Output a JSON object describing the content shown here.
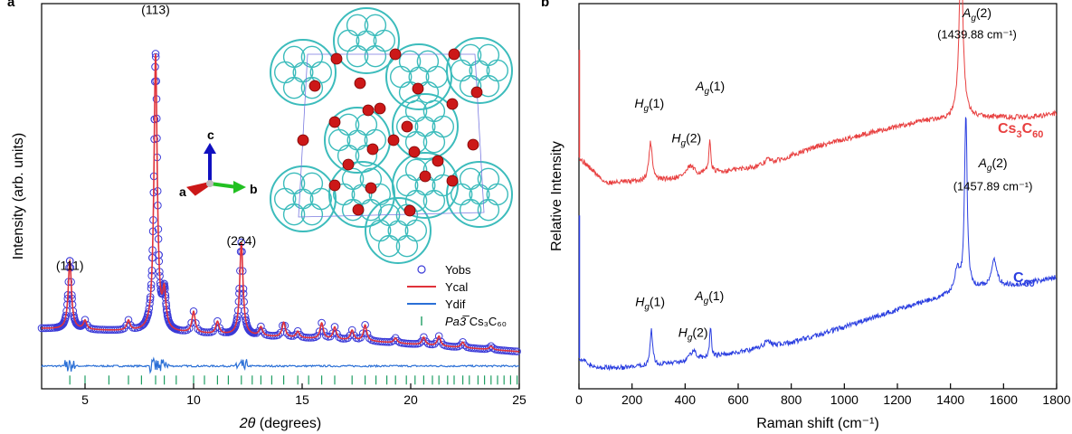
{
  "colors": {
    "yobs": "#3b3bd8",
    "ycal": "#e0323a",
    "ydif": "#2a6fd6",
    "ticks": "#1f9e63",
    "raman_cs3c60": "#e84040",
    "raman_c60": "#2a3ee0",
    "cage": "#3cbcbc",
    "cs_atom": "#cc1818",
    "axis_a": "#cc1818",
    "axis_b": "#22c022",
    "axis_c": "#1010c0"
  },
  "chart_data": [
    {
      "type": "scatter",
      "panel_label": "a",
      "xlabel_symbol": "2θ",
      "xlabel_unit": " (degrees)",
      "ylabel": "Intensity (arb. units)",
      "xlim": [
        3,
        25
      ],
      "ylim": [
        -10,
        100
      ],
      "xticks": [
        5,
        10,
        15,
        20,
        25
      ],
      "background": [
        [
          3,
          7.2
        ],
        [
          10,
          5.8
        ],
        [
          18,
          3.6
        ],
        [
          25,
          0.6
        ]
      ],
      "peaks": [
        {
          "pos": 4.3,
          "height": 19.5
        },
        {
          "pos": 5.0,
          "height": 2.5
        },
        {
          "pos": 7.0,
          "height": 2.8
        },
        {
          "pos": 8.25,
          "height": 79
        },
        {
          "pos": 8.65,
          "height": 10
        },
        {
          "pos": 10.0,
          "height": 6
        },
        {
          "pos": 11.1,
          "height": 3.5
        },
        {
          "pos": 12.2,
          "height": 26.5
        },
        {
          "pos": 13.1,
          "height": 2.5
        },
        {
          "pos": 14.15,
          "height": 4.2
        },
        {
          "pos": 14.8,
          "height": 1.8
        },
        {
          "pos": 15.9,
          "height": 4.5
        },
        {
          "pos": 16.5,
          "height": 3.5
        },
        {
          "pos": 17.3,
          "height": 2.8
        },
        {
          "pos": 17.9,
          "height": 4.5
        },
        {
          "pos": 19.3,
          "height": 1.4
        },
        {
          "pos": 20.6,
          "height": 2.2
        },
        {
          "pos": 21.3,
          "height": 2.8
        },
        {
          "pos": 22.4,
          "height": 1.6
        },
        {
          "pos": 23.7,
          "height": 1.0
        }
      ],
      "difference_baseline": -3.5,
      "tick_row": -7.5,
      "reflection_markers": [
        4.3,
        5.0,
        6.1,
        7.0,
        7.6,
        8.25,
        8.65,
        9.2,
        10.0,
        10.5,
        11.1,
        11.6,
        12.2,
        12.7,
        13.1,
        13.6,
        14.15,
        14.8,
        15.3,
        15.9,
        16.5,
        17.3,
        17.9,
        18.4,
        18.9,
        19.3,
        19.8,
        20.2,
        20.6,
        21.0,
        21.3,
        21.7,
        22.0,
        22.4,
        22.7,
        23.1,
        23.4,
        23.7,
        24.0,
        24.3,
        24.6,
        24.9
      ],
      "peak_labels": [
        {
          "text": "(111)",
          "x": 4.3,
          "y": 24
        },
        {
          "text": "(113)",
          "x": 8.25,
          "y": 97
        },
        {
          "text": "(224)",
          "x": 12.2,
          "y": 31
        }
      ],
      "legend": {
        "position": "bottom-right",
        "items": [
          {
            "label": "Yobs",
            "style": "circle"
          },
          {
            "label": "Ycal",
            "style": "line-ycal"
          },
          {
            "label": "Ydif",
            "style": "line-ydif"
          },
          {
            "label_italic": "Pa3̅",
            "label_rest": " Cs₃C₆₀",
            "style": "tick"
          }
        ]
      },
      "inset": {
        "description": "crystal-structure",
        "axis_labels": {
          "a": "a",
          "b": "b",
          "c": "c"
        }
      }
    },
    {
      "type": "line",
      "panel_label": "b",
      "xlabel": "Raman shift (cm⁻¹)",
      "ylabel": "Relative Intensity",
      "xlim": [
        0,
        1800
      ],
      "ylim": [
        0,
        100
      ],
      "xticks": [
        0,
        200,
        400,
        600,
        800,
        1000,
        1200,
        1400,
        1600,
        1800
      ],
      "series": [
        {
          "name": "Cs3C60",
          "name_html_base": "Cs",
          "name_sub1": "3",
          "name_mid": "C",
          "name_sub2": "60",
          "baseline": [
            [
              0,
              60
            ],
            [
              100,
              53.5
            ],
            [
              300,
              54
            ],
            [
              500,
              56
            ],
            [
              700,
              58
            ],
            [
              900,
              63
            ],
            [
              1100,
              66.5
            ],
            [
              1300,
              69.5
            ],
            [
              1400,
              70
            ],
            [
              1500,
              70.5
            ],
            [
              1700,
              70.5
            ],
            [
              1800,
              71.5
            ]
          ],
          "peaks": [
            {
              "pos": 270,
              "height": 10,
              "width": 8
            },
            {
              "pos": 420,
              "height": 2.5,
              "width": 18
            },
            {
              "pos": 493,
              "height": 8,
              "width": 5
            },
            {
              "pos": 710,
              "height": 1.5,
              "width": 12
            },
            {
              "pos": 1439.88,
              "height": 42,
              "width": 9
            }
          ],
          "spike": [
            0,
            88
          ],
          "labels": [
            {
              "sym": "H",
              "sub": "g",
              "rest": "(1)",
              "x": 265,
              "y": 73
            },
            {
              "sym": "H",
              "sub": "g",
              "rest": "(2)",
              "x": 405,
              "y": 64
            },
            {
              "sym": "A",
              "sub": "g",
              "rest": "(1)",
              "x": 495,
              "y": 77.5
            },
            {
              "sym": "A",
              "sub": "g",
              "rest": "(2)",
              "x": 1500,
              "y": 96.5
            },
            {
              "text": "(1439.88 cm⁻¹)",
              "x": 1500,
              "y": 91
            }
          ]
        },
        {
          "name": "C60",
          "name_html_base": "C",
          "name_sub1": "60",
          "baseline": [
            [
              0,
              8
            ],
            [
              60,
              5.5
            ],
            [
              200,
              5.5
            ],
            [
              400,
              7
            ],
            [
              600,
              9.5
            ],
            [
              800,
              12
            ],
            [
              1000,
              16
            ],
            [
              1200,
              20.5
            ],
            [
              1350,
              23.5
            ],
            [
              1500,
              26
            ],
            [
              1650,
              27
            ],
            [
              1800,
              29
            ]
          ],
          "peaks": [
            {
              "pos": 273,
              "height": 9,
              "width": 6
            },
            {
              "pos": 430,
              "height": 2.5,
              "width": 14
            },
            {
              "pos": 496,
              "height": 8,
              "width": 4
            },
            {
              "pos": 710,
              "height": 2.0,
              "width": 12
            },
            {
              "pos": 1425,
              "height": 6,
              "width": 12
            },
            {
              "pos": 1457.89,
              "height": 46,
              "width": 6
            },
            {
              "pos": 1565,
              "height": 7,
              "width": 12
            }
          ],
          "spike": [
            0,
            45
          ],
          "labels": [
            {
              "sym": "H",
              "sub": "g",
              "rest": "(1)",
              "x": 268,
              "y": 21.5
            },
            {
              "sym": "H",
              "sub": "g",
              "rest": "(2)",
              "x": 430,
              "y": 13.5
            },
            {
              "sym": "A",
              "sub": "g",
              "rest": "(1)",
              "x": 492,
              "y": 23
            },
            {
              "sym": "A",
              "sub": "g",
              "rest": "(2)",
              "x": 1560,
              "y": 57.5
            },
            {
              "text": "(1457.89 cm⁻¹)",
              "x": 1560,
              "y": 51.5
            }
          ]
        }
      ]
    }
  ]
}
